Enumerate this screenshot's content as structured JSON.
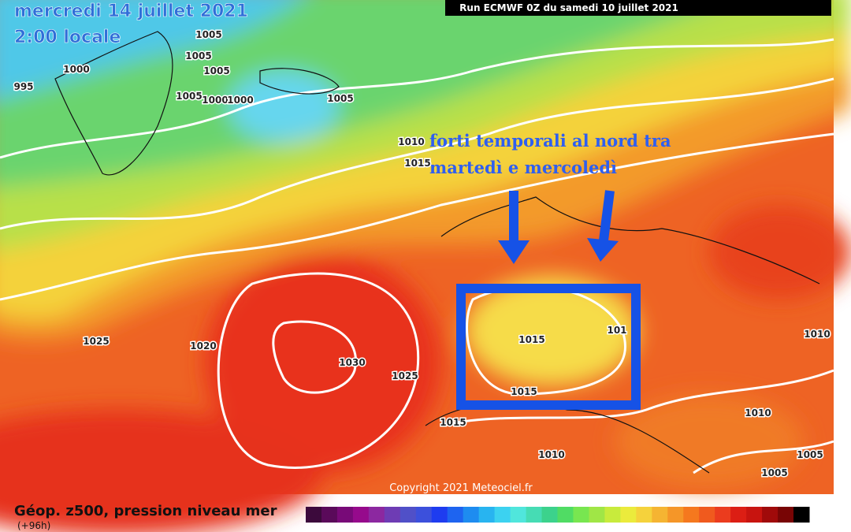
{
  "header": {
    "date": "mercredi 14 juillet 2021",
    "time": "2:00 locale",
    "run": "Run ECMWF 0Z du samedi 10 juillet 2021"
  },
  "annotation": {
    "line1": "forti temporali al nord tra",
    "line2": "martedì e mercoledì"
  },
  "isobar_labels": [
    "1005",
    "1005",
    "1005",
    "1000",
    "995",
    "1005",
    "1000",
    "1000",
    "1005",
    "1010",
    "1015",
    "1025",
    "1020",
    "1030",
    "1025",
    "1015",
    "1015",
    "1015",
    "1010",
    "101",
    "1010",
    "1010",
    "1005",
    "1005"
  ],
  "copyright": "Copyright 2021 Meteociel.fr",
  "footer": {
    "title": "Géop. z500, pression niveau mer",
    "subtitle": "(+96h)"
  },
  "colorbar": {
    "colors": [
      "#3c0a3c",
      "#5a0a5a",
      "#780a78",
      "#960a8c",
      "#8c28a0",
      "#6e3cb4",
      "#5050c8",
      "#3c50dc",
      "#1e3cf0",
      "#1e64f0",
      "#1e8cf0",
      "#28b4f0",
      "#3cd2f0",
      "#50e6dc",
      "#46dcb4",
      "#3cd28c",
      "#50dc64",
      "#78e650",
      "#a0e646",
      "#c8eb3c",
      "#ebeb3c",
      "#f5d23c",
      "#f5b432",
      "#f59628",
      "#f5781e",
      "#f05a1e",
      "#eb3c1e",
      "#dc1e14",
      "#c8140f",
      "#a00a0a",
      "#780505",
      "#000000"
    ]
  }
}
